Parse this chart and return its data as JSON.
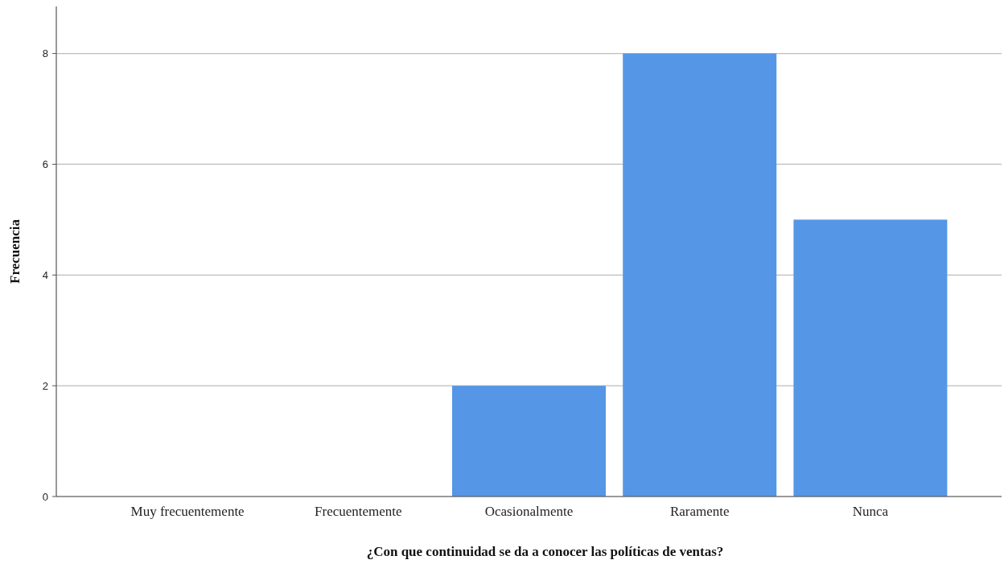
{
  "chart_data": {
    "type": "bar",
    "xlabel": "¿Con que continuidad se da a conocer las políticas de ventas?",
    "ylabel": "Frecuencia",
    "categories": [
      "Muy frecuentemente",
      "Frecuentemente",
      "Ocasionalmente",
      "Raramente",
      "Nunca"
    ],
    "values": [
      0,
      0,
      2,
      8,
      5
    ],
    "color": "#5596e6",
    "ylim": [
      0,
      8.85
    ],
    "yticks": [
      0,
      2,
      4,
      6,
      8
    ],
    "grid": "y"
  }
}
